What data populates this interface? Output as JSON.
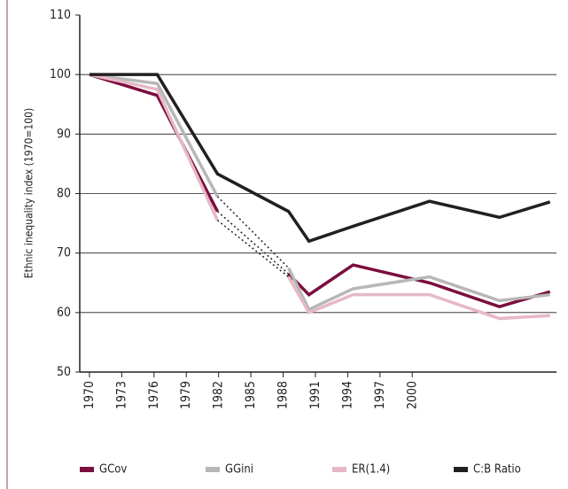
{
  "chart_data": {
    "type": "line",
    "y_label": "Ethnic inequality index (1970=100)",
    "x": [
      1970,
      1976.3,
      1981.9,
      1988.5,
      1990.4,
      1994.5,
      2001.6,
      2008.1,
      2012.8
    ],
    "xlim": [
      1969.1,
      2013.4
    ],
    "xticks": [
      1970,
      1973,
      1976,
      1979,
      1982,
      1985,
      1988,
      1991,
      1994,
      1997,
      2000
    ],
    "ylim": [
      50,
      110
    ],
    "yticks": [
      50,
      60,
      70,
      80,
      90,
      100,
      110
    ],
    "grid": true,
    "legend": "bottom",
    "dotted_segment": [
      2,
      3
    ],
    "series": [
      {
        "name": "GCov",
        "color": "#7b0d3f",
        "values": [
          100,
          96.5,
          77,
          66.5,
          63,
          68,
          65,
          61,
          63.5
        ],
        "dotted": true
      },
      {
        "name": "GGini",
        "color": "#b7b7b7",
        "values": [
          100,
          98.5,
          79.5,
          67.5,
          60.5,
          64,
          66,
          62,
          63
        ],
        "dotted": true
      },
      {
        "name": "ER(1.4)",
        "color": "#e6b8c6",
        "values": [
          100,
          97.5,
          75.5,
          66,
          60,
          63,
          63,
          59,
          59.5
        ],
        "dotted": true
      },
      {
        "name": "C:B Ratio",
        "color": "#231f20",
        "values": [
          100,
          100,
          83.3,
          77,
          72,
          74.5,
          78.7,
          76,
          78.6
        ],
        "dotted": false
      }
    ]
  }
}
